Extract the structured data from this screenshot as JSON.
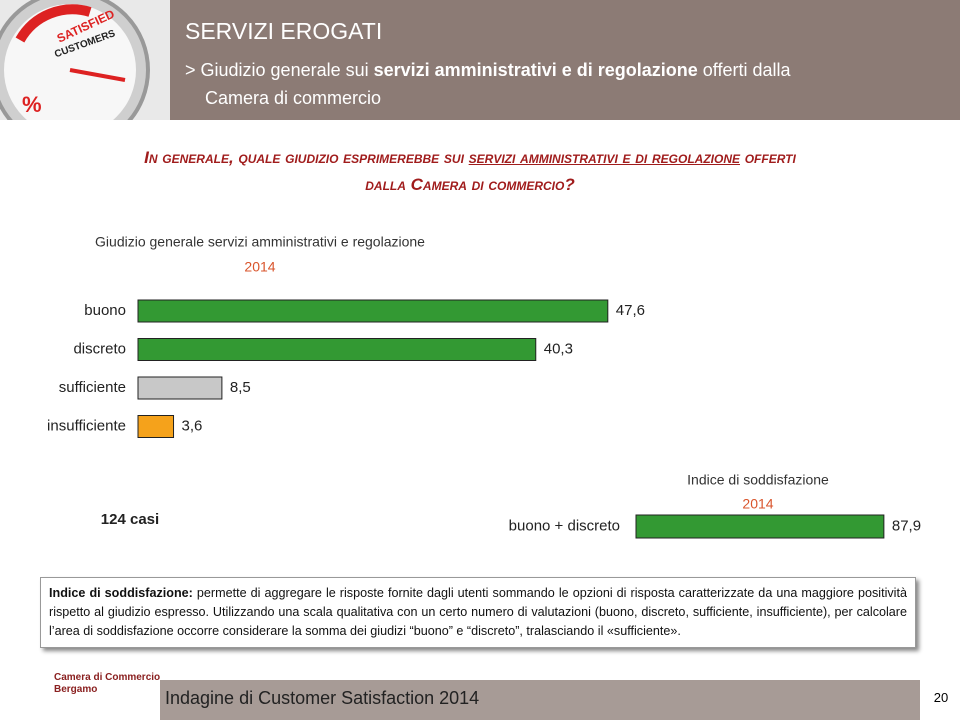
{
  "header": {
    "title": "SERVIZI EROGATI",
    "subtitle_parts": [
      "> Giudizio generale sui ",
      "servizi amministrativi e di regolazione",
      " offerti dalla",
      "Camera di commercio"
    ],
    "logo_texts": [
      "SATISFIED",
      "CUSTOMERS",
      "%"
    ]
  },
  "question_parts": [
    "In generale, quale giudizio esprimerebbe sui ",
    "servizi amministrativi e di regolazione",
    " offerti",
    "dalla Camera di commercio?"
  ],
  "chart_data": [
    {
      "type": "bar",
      "orientation": "horizontal",
      "title": "Giudizio generale servizi amministrativi e regolazione",
      "subtitle": "2014",
      "annotation": "124 casi",
      "categories": [
        "buono",
        "discreto",
        "sufficiente",
        "insufficiente"
      ],
      "values": [
        47.6,
        40.3,
        8.5,
        3.6
      ],
      "value_labels": [
        "47,6",
        "40,3",
        "8,5",
        "3,6"
      ],
      "colors": [
        "#339933",
        "#339933",
        "#c8c8c8",
        "#f5a21b"
      ]
    },
    {
      "type": "bar",
      "orientation": "horizontal",
      "title": "Indice di soddisfazione",
      "subtitle": "2014",
      "categories": [
        "buono + discreto"
      ],
      "values": [
        87.9
      ],
      "value_labels": [
        "87,9"
      ],
      "colors": [
        "#339933"
      ]
    }
  ],
  "note": {
    "lead": "Indice di soddisfazione:",
    "text": " permette di aggregare le risposte fornite dagli utenti sommando le opzioni di risposta caratterizzate da una maggiore positività rispetto al giudizio espresso. Utilizzando una scala qualitativa con un certo numero di valutazioni (buono, discreto, sufficiente, insufficiente), per calcolare l’area di soddisfazione occorre considerare la somma dei giudizi “buono” e “discreto”, tralasciando il «sufficiente»."
  },
  "footer": {
    "logo_lines": [
      "Camera di Commercio",
      "Bergamo"
    ],
    "text": "Indagine di Customer Satisfaction 2014",
    "page": "20"
  }
}
